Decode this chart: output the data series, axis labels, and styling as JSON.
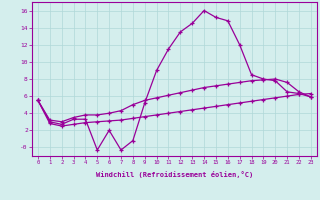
{
  "x_values": [
    0,
    1,
    2,
    3,
    4,
    5,
    6,
    7,
    8,
    9,
    10,
    11,
    12,
    13,
    14,
    15,
    16,
    17,
    18,
    19,
    20,
    21,
    22,
    23
  ],
  "y_main": [
    5.5,
    3.0,
    2.7,
    3.3,
    3.3,
    -0.3,
    2.0,
    -0.3,
    0.8,
    5.2,
    9.0,
    11.5,
    13.5,
    14.5,
    16.0,
    15.2,
    14.8,
    12.0,
    8.5,
    8.0,
    7.8,
    6.5,
    6.3,
    5.9
  ],
  "y_upper": [
    5.5,
    3.2,
    3.0,
    3.5,
    3.8,
    3.8,
    4.0,
    4.3,
    5.0,
    5.5,
    5.8,
    6.1,
    6.4,
    6.7,
    7.0,
    7.2,
    7.4,
    7.6,
    7.8,
    7.9,
    8.0,
    7.6,
    6.5,
    5.9
  ],
  "y_lower": [
    5.5,
    2.8,
    2.5,
    2.7,
    2.9,
    3.0,
    3.1,
    3.2,
    3.4,
    3.6,
    3.8,
    4.0,
    4.2,
    4.4,
    4.6,
    4.8,
    5.0,
    5.2,
    5.4,
    5.6,
    5.8,
    6.0,
    6.2,
    6.3
  ],
  "color": "#990099",
  "bg_color": "#d4eeed",
  "grid_color": "#b0d8d8",
  "xlabel": "Windchill (Refroidissement éolien,°C)",
  "ylim": [
    -1,
    17
  ],
  "xlim": [
    -0.5,
    23.5
  ]
}
